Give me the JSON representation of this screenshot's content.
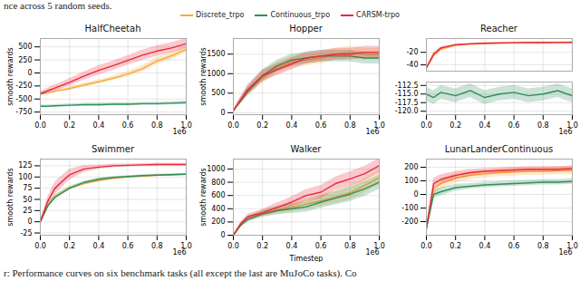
{
  "caption_top": "nce across 5 random seeds.",
  "caption_bottom": "r: Performance curves on six benchmark tasks (all except the last are MuJoCo tasks). Co",
  "chart_data": [
    {
      "type": "line",
      "title": "HalfCheetah",
      "legend": "top",
      "grid": true,
      "x": [
        0,
        0.05,
        0.1,
        0.2,
        0.3,
        0.4,
        0.5,
        0.6,
        0.7,
        0.8,
        0.9,
        1.0
      ],
      "xlim": [
        0,
        1
      ],
      "xticks": [
        {
          "value": 0,
          "label": "0.0"
        },
        0.2,
        0.4,
        0.6,
        0.8,
        {
          "value": 1,
          "label": "1.0"
        }
      ],
      "annotation": "1e6",
      "ylim": [
        -800,
        660
      ],
      "yticks": [
        -750,
        -500,
        -250,
        0,
        250,
        500
      ],
      "y_label": "smooth rewards",
      "series": [
        {
          "name": "Discrete_trpo",
          "color": "#f7a935",
          "values": [
            -400,
            -380,
            -350,
            -300,
            -230,
            -170,
            -100,
            -20,
            80,
            230,
            330,
            450
          ],
          "spread": [
            30,
            30,
            35,
            35,
            40,
            40,
            45,
            50,
            60,
            70,
            70,
            70
          ]
        },
        {
          "name": "Continuous_trpo",
          "color": "#2f8f5b",
          "values": [
            -640,
            -640,
            -630,
            -620,
            -610,
            -610,
            -600,
            -600,
            -590,
            -590,
            -580,
            -570
          ],
          "spread": [
            25,
            25,
            25,
            30,
            30,
            30,
            30,
            30,
            30,
            30,
            30,
            30
          ]
        },
        {
          "name": "CARSM-trpo",
          "color": "#e8283c",
          "values": [
            -400,
            -340,
            -290,
            -180,
            -60,
            50,
            140,
            240,
            340,
            420,
            480,
            560
          ],
          "spread": [
            40,
            50,
            60,
            70,
            80,
            90,
            90,
            90,
            100,
            100,
            100,
            100
          ]
        }
      ]
    },
    {
      "type": "line",
      "title": "Hopper",
      "grid": true,
      "x": [
        0,
        0.05,
        0.1,
        0.2,
        0.3,
        0.4,
        0.5,
        0.6,
        0.7,
        0.8,
        0.9,
        1.0
      ],
      "xlim": [
        0,
        1
      ],
      "xticks": [
        {
          "value": 0,
          "label": "0.0"
        },
        0.2,
        0.4,
        0.6,
        0.8,
        {
          "value": 1,
          "label": "1.0"
        }
      ],
      "annotation": "1e6",
      "ylim": [
        -50,
        1900
      ],
      "yticks": [
        0,
        500,
        1000,
        1500
      ],
      "y_label": "smooth rewards",
      "series": [
        {
          "name": "Discrete_trpo",
          "color": "#f7a935",
          "values": [
            50,
            300,
            550,
            900,
            1150,
            1300,
            1350,
            1400,
            1500,
            1550,
            1500,
            1500
          ],
          "spread": [
            20,
            80,
            120,
            150,
            150,
            150,
            150,
            150,
            150,
            150,
            150,
            150
          ]
        },
        {
          "name": "Continuous_trpo",
          "color": "#2f8f5b",
          "values": [
            50,
            300,
            550,
            950,
            1200,
            1350,
            1400,
            1450,
            1450,
            1450,
            1400,
            1400
          ],
          "spread": [
            20,
            80,
            120,
            150,
            150,
            150,
            150,
            150,
            150,
            150,
            150,
            150
          ]
        },
        {
          "name": "CARSM-trpo",
          "color": "#e8283c",
          "values": [
            50,
            330,
            600,
            950,
            1100,
            1250,
            1400,
            1450,
            1500,
            1500,
            1550,
            1550
          ],
          "spread": [
            20,
            80,
            120,
            150,
            150,
            150,
            150,
            150,
            150,
            150,
            150,
            150
          ]
        }
      ]
    },
    {
      "type": "line",
      "title": "Reacher",
      "grid": true,
      "tick_labels": "y",
      "x": [
        0,
        0.05,
        0.1,
        0.2,
        0.3,
        0.4,
        0.5,
        0.6,
        0.7,
        0.8,
        0.9,
        1.0
      ],
      "xlim": [
        0,
        1
      ],
      "xticks": [
        {
          "value": 0,
          "label": "0.0"
        },
        0.2,
        0.4,
        0.6,
        0.8,
        {
          "value": 1,
          "label": "1.0"
        }
      ],
      "ylim": [
        -50,
        2
      ],
      "yticks": [
        -40,
        -20
      ],
      "series": [
        {
          "name": "Discrete_trpo",
          "color": "#f7a935",
          "values": [
            -45,
            -25,
            -15,
            -9,
            -7,
            -6,
            -5.5,
            -5,
            -5,
            -4.8,
            -4.7,
            -4.6
          ],
          "spread": [
            2,
            3,
            2,
            1.5,
            1,
            1,
            1,
            1,
            1,
            1,
            1,
            1
          ]
        },
        {
          "name": "CARSM-trpo",
          "color": "#e8283c",
          "values": [
            -45,
            -23,
            -13,
            -8,
            -6.5,
            -5.5,
            -5,
            -4.7,
            -4.5,
            -4.4,
            -4.3,
            -4.2
          ],
          "spread": [
            2,
            3,
            2,
            1.5,
            1,
            1,
            1,
            1,
            1,
            1,
            1,
            1
          ]
        }
      ]
    },
    {
      "type": "line",
      "grid": true,
      "x": [
        0,
        0.05,
        0.1,
        0.2,
        0.3,
        0.4,
        0.5,
        0.6,
        0.7,
        0.8,
        0.9,
        1.0
      ],
      "xlim": [
        0,
        1
      ],
      "xticks": [
        {
          "value": 0,
          "label": "0.0"
        },
        0.2,
        0.4,
        0.6,
        0.8,
        {
          "value": 1,
          "label": "1.0"
        }
      ],
      "annotation": "1e6",
      "ylim": [
        -121,
        -111.5
      ],
      "yticks": [
        {
          "value": -112.5,
          "label": "-112.5"
        },
        {
          "value": -115,
          "label": "-115.0"
        },
        {
          "value": -117.5,
          "label": "-117.5"
        },
        {
          "value": -120,
          "label": "-120.0"
        }
      ],
      "series": [
        {
          "name": "Continuous_trpo",
          "color": "#2f8f5b",
          "values": [
            -115,
            -116,
            -114.5,
            -115.5,
            -114,
            -116,
            -115,
            -114.5,
            -115.5,
            -115,
            -114,
            -115.5
          ],
          "spread": [
            2,
            2,
            2,
            2,
            2,
            2,
            2,
            2,
            2,
            2,
            2,
            2
          ]
        }
      ]
    },
    {
      "type": "line",
      "title": "Swimmer",
      "grid": true,
      "x": [
        0,
        0.05,
        0.1,
        0.2,
        0.3,
        0.4,
        0.5,
        0.6,
        0.7,
        0.8,
        0.9,
        1.0
      ],
      "xlim": [
        0,
        1
      ],
      "xticks": [
        {
          "value": 0,
          "label": "0.0"
        },
        0.2,
        0.4,
        0.6,
        0.8,
        {
          "value": 1,
          "label": "1.0"
        }
      ],
      "annotation": "1e6",
      "ylim": [
        -30,
        140
      ],
      "yticks": [
        -25,
        0,
        25,
        50,
        75,
        100,
        125
      ],
      "y_label": "smooth rewards",
      "series": [
        {
          "name": "Discrete_trpo",
          "color": "#f7a935",
          "values": [
            0,
            35,
            55,
            75,
            85,
            92,
            97,
            100,
            102,
            104,
            105,
            106
          ],
          "spread": [
            3,
            5,
            5,
            4,
            3,
            3,
            2,
            2,
            2,
            2,
            2,
            2
          ]
        },
        {
          "name": "Continuous_trpo",
          "color": "#2f8f5b",
          "values": [
            0,
            35,
            55,
            75,
            88,
            95,
            99,
            101,
            103,
            104,
            105,
            106
          ],
          "spread": [
            3,
            5,
            5,
            4,
            3,
            3,
            2,
            2,
            2,
            2,
            2,
            2
          ]
        },
        {
          "name": "CARSM-trpo",
          "color": "#e8283c",
          "values": [
            0,
            45,
            75,
            105,
            118,
            122,
            125,
            126,
            127,
            128,
            128,
            128
          ],
          "spread": [
            3,
            10,
            14,
            12,
            8,
            5,
            4,
            3,
            3,
            3,
            3,
            3
          ]
        }
      ]
    },
    {
      "type": "line",
      "title": "Walker",
      "grid": true,
      "x": [
        0,
        0.05,
        0.1,
        0.2,
        0.3,
        0.4,
        0.5,
        0.6,
        0.7,
        0.8,
        0.9,
        1.0
      ],
      "xlim": [
        0,
        1
      ],
      "xticks": [
        {
          "value": 0,
          "label": "0.0"
        },
        0.2,
        0.4,
        0.6,
        0.8,
        {
          "value": 1,
          "label": "1.0"
        }
      ],
      "annotation": "1e6",
      "x_label": "Timestep",
      "ylim": [
        0,
        1150
      ],
      "yticks": [
        0,
        200,
        400,
        600,
        800,
        1000
      ],
      "y_label": "smooth rewards",
      "series": [
        {
          "name": "Discrete_trpo",
          "color": "#f7a935",
          "values": [
            0,
            150,
            250,
            330,
            380,
            420,
            470,
            520,
            580,
            640,
            750,
            870
          ],
          "spread": [
            10,
            30,
            40,
            50,
            60,
            70,
            80,
            90,
            100,
            110,
            110,
            110
          ]
        },
        {
          "name": "Continuous_trpo",
          "color": "#2f8f5b",
          "values": [
            0,
            150,
            240,
            320,
            370,
            400,
            430,
            500,
            560,
            620,
            700,
            800
          ],
          "spread": [
            10,
            30,
            40,
            50,
            60,
            70,
            80,
            90,
            100,
            110,
            110,
            110
          ]
        },
        {
          "name": "CARSM-trpo",
          "color": "#e8283c",
          "values": [
            0,
            170,
            280,
            340,
            420,
            500,
            600,
            650,
            780,
            850,
            930,
            1050
          ],
          "spread": [
            10,
            30,
            40,
            50,
            70,
            80,
            90,
            100,
            100,
            110,
            110,
            110
          ]
        }
      ]
    },
    {
      "type": "line",
      "title": "LunarLanderContinuous",
      "grid": true,
      "x": [
        0,
        0.05,
        0.1,
        0.2,
        0.3,
        0.4,
        0.5,
        0.6,
        0.7,
        0.8,
        0.9,
        1.0
      ],
      "xlim": [
        0,
        1
      ],
      "xticks": [
        {
          "value": 0,
          "label": "0.0"
        },
        0.2,
        0.4,
        0.6,
        0.8,
        {
          "value": 1,
          "label": "1.0"
        }
      ],
      "annotation": "1e6",
      "ylim": [
        -300,
        260
      ],
      "yticks": [
        -200,
        -100,
        0,
        100,
        200
      ],
      "series": [
        {
          "name": "Discrete_trpo",
          "color": "#f7a935",
          "values": [
            -250,
            40,
            80,
            120,
            140,
            150,
            160,
            165,
            170,
            170,
            175,
            175
          ],
          "spread": [
            20,
            40,
            40,
            35,
            30,
            30,
            30,
            30,
            30,
            30,
            30,
            30
          ]
        },
        {
          "name": "Continuous_trpo",
          "color": "#2f8f5b",
          "values": [
            -250,
            0,
            20,
            50,
            60,
            70,
            75,
            80,
            85,
            90,
            90,
            95
          ],
          "spread": [
            20,
            30,
            30,
            25,
            20,
            20,
            20,
            20,
            20,
            20,
            20,
            20
          ]
        },
        {
          "name": "CARSM-trpo",
          "color": "#e8283c",
          "values": [
            -250,
            80,
            110,
            140,
            160,
            170,
            175,
            180,
            185,
            185,
            185,
            190
          ],
          "spread": [
            20,
            40,
            35,
            30,
            25,
            20,
            20,
            20,
            20,
            20,
            20,
            20
          ]
        }
      ]
    }
  ]
}
